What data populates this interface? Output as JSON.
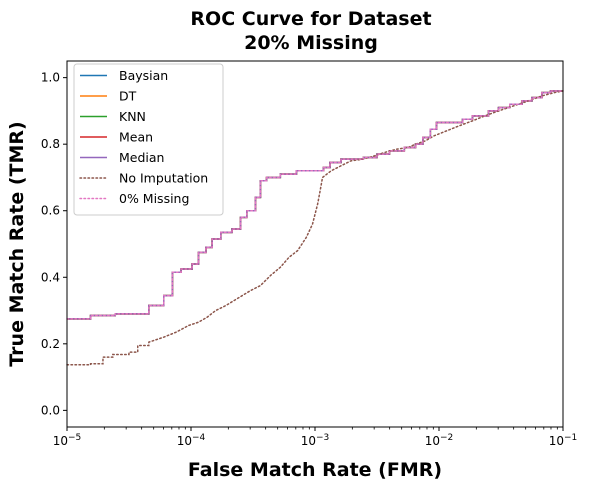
{
  "chart_data": {
    "type": "line",
    "title": [
      "ROC Curve for Dataset",
      "20% Missing"
    ],
    "xlabel": "False Match Rate (FMR)",
    "ylabel": "True Match Rate (TMR)",
    "x_scale": "log",
    "xlim": [
      1e-05,
      0.1
    ],
    "ylim": [
      -0.05,
      1.05
    ],
    "grid": false,
    "legend_position": "top-left",
    "x_ticks": [
      {
        "value": 1e-05,
        "base": "10",
        "exp": "−5"
      },
      {
        "value": 0.0001,
        "base": "10",
        "exp": "−4"
      },
      {
        "value": 0.001,
        "base": "10",
        "exp": "−3"
      },
      {
        "value": 0.01,
        "base": "10",
        "exp": "−2"
      },
      {
        "value": 0.1,
        "base": "10",
        "exp": "−1"
      }
    ],
    "y_ticks": [
      {
        "value": 0.0,
        "label": "0.0"
      },
      {
        "value": 0.2,
        "label": "0.2"
      },
      {
        "value": 0.4,
        "label": "0.4"
      },
      {
        "value": 0.6,
        "label": "0.6"
      },
      {
        "value": 0.8,
        "label": "0.8"
      },
      {
        "value": 1.0,
        "label": "1.0"
      }
    ],
    "imputed_curve": [
      [
        1e-05,
        0.275
      ],
      [
        1.55e-05,
        0.275
      ],
      [
        1.55e-05,
        0.285
      ],
      [
        2.45e-05,
        0.285
      ],
      [
        2.45e-05,
        0.29
      ],
      [
        3.47e-05,
        0.29
      ],
      [
        3.47e-05,
        0.29
      ],
      [
        4.57e-05,
        0.29
      ],
      [
        4.57e-05,
        0.315
      ],
      [
        6.03e-05,
        0.315
      ],
      [
        6.03e-05,
        0.345
      ],
      [
        7.08e-05,
        0.345
      ],
      [
        7.08e-05,
        0.415
      ],
      [
        8.32e-05,
        0.415
      ],
      [
        8.32e-05,
        0.425
      ],
      [
        0.000102,
        0.425
      ],
      [
        0.000102,
        0.44
      ],
      [
        0.000115,
        0.44
      ],
      [
        0.000115,
        0.475
      ],
      [
        0.000132,
        0.475
      ],
      [
        0.000132,
        0.49
      ],
      [
        0.000148,
        0.49
      ],
      [
        0.000148,
        0.515
      ],
      [
        0.000174,
        0.515
      ],
      [
        0.000174,
        0.535
      ],
      [
        0.000214,
        0.535
      ],
      [
        0.000214,
        0.545
      ],
      [
        0.000251,
        0.545
      ],
      [
        0.000251,
        0.58
      ],
      [
        0.000282,
        0.58
      ],
      [
        0.000282,
        0.6
      ],
      [
        0.000331,
        0.6
      ],
      [
        0.000331,
        0.64
      ],
      [
        0.000363,
        0.64
      ],
      [
        0.000363,
        0.69
      ],
      [
        0.000407,
        0.69
      ],
      [
        0.000407,
        0.7
      ],
      [
        0.000525,
        0.7
      ],
      [
        0.000525,
        0.71
      ],
      [
        0.000708,
        0.71
      ],
      [
        0.000708,
        0.72
      ],
      [
        0.00117,
        0.72
      ],
      [
        0.00117,
        0.73
      ],
      [
        0.00132,
        0.73
      ],
      [
        0.00132,
        0.745
      ],
      [
        0.00162,
        0.745
      ],
      [
        0.00162,
        0.755
      ],
      [
        0.00245,
        0.755
      ],
      [
        0.00245,
        0.76
      ],
      [
        0.00316,
        0.76
      ],
      [
        0.00316,
        0.77
      ],
      [
        0.00398,
        0.77
      ],
      [
        0.00398,
        0.78
      ],
      [
        0.00525,
        0.78
      ],
      [
        0.00525,
        0.79
      ],
      [
        0.00646,
        0.79
      ],
      [
        0.00646,
        0.8
      ],
      [
        0.00741,
        0.8
      ],
      [
        0.00741,
        0.82
      ],
      [
        0.00851,
        0.82
      ],
      [
        0.00851,
        0.845
      ],
      [
        0.00955,
        0.845
      ],
      [
        0.00955,
        0.865
      ],
      [
        0.0155,
        0.865
      ],
      [
        0.0155,
        0.875
      ],
      [
        0.0186,
        0.875
      ],
      [
        0.0186,
        0.885
      ],
      [
        0.0251,
        0.885
      ],
      [
        0.0251,
        0.9
      ],
      [
        0.0302,
        0.9
      ],
      [
        0.0302,
        0.91
      ],
      [
        0.0372,
        0.91
      ],
      [
        0.0372,
        0.92
      ],
      [
        0.0468,
        0.92
      ],
      [
        0.0468,
        0.93
      ],
      [
        0.0562,
        0.93
      ],
      [
        0.0562,
        0.94
      ],
      [
        0.0676,
        0.94
      ],
      [
        0.0676,
        0.955
      ],
      [
        0.0794,
        0.955
      ],
      [
        0.0794,
        0.96
      ],
      [
        0.1,
        0.96
      ]
    ],
    "no_imputation_curve": [
      [
        1e-05,
        0.137
      ],
      [
        1.55e-05,
        0.137
      ],
      [
        1.55e-05,
        0.14
      ],
      [
        1.95e-05,
        0.14
      ],
      [
        1.95e-05,
        0.16
      ],
      [
        2.34e-05,
        0.16
      ],
      [
        2.34e-05,
        0.168
      ],
      [
        3.16e-05,
        0.168
      ],
      [
        3.16e-05,
        0.175
      ],
      [
        3.72e-05,
        0.175
      ],
      [
        3.72e-05,
        0.195
      ],
      [
        4.57e-05,
        0.195
      ],
      [
        4.57e-05,
        0.205
      ],
      [
        6.03e-05,
        0.22
      ],
      [
        7.59e-05,
        0.235
      ],
      [
        9.55e-05,
        0.255
      ],
      [
        0.000115,
        0.265
      ],
      [
        0.000135,
        0.28
      ],
      [
        0.000158,
        0.3
      ],
      [
        0.000191,
        0.315
      ],
      [
        0.000234,
        0.335
      ],
      [
        0.000302,
        0.36
      ],
      [
        0.000363,
        0.375
      ],
      [
        0.000437,
        0.405
      ],
      [
        0.000525,
        0.43
      ],
      [
        0.000617,
        0.46
      ],
      [
        0.000724,
        0.48
      ],
      [
        0.000851,
        0.52
      ],
      [
        0.000955,
        0.56
      ],
      [
        0.00105,
        0.62
      ],
      [
        0.0011,
        0.66
      ],
      [
        0.00115,
        0.7
      ],
      [
        0.00135,
        0.72
      ],
      [
        0.00162,
        0.735
      ],
      [
        0.00195,
        0.75
      ],
      [
        0.00245,
        0.755
      ],
      [
        0.00302,
        0.765
      ],
      [
        0.00363,
        0.775
      ],
      [
        0.00457,
        0.785
      ],
      [
        0.00562,
        0.79
      ],
      [
        0.00646,
        0.8
      ],
      [
        0.00776,
        0.81
      ],
      [
        0.00912,
        0.825
      ],
      [
        0.0115,
        0.84
      ],
      [
        0.0145,
        0.855
      ],
      [
        0.0186,
        0.87
      ],
      [
        0.0234,
        0.885
      ],
      [
        0.0302,
        0.9
      ],
      [
        0.0398,
        0.915
      ],
      [
        0.0525,
        0.93
      ],
      [
        0.0676,
        0.945
      ],
      [
        0.0851,
        0.955
      ],
      [
        0.1,
        0.96
      ]
    ],
    "series": [
      {
        "name": "Baysian",
        "color": "#1f77b4",
        "style": "solid",
        "curve": "imputed_curve"
      },
      {
        "name": "DT",
        "color": "#ff7f0e",
        "style": "solid",
        "curve": "imputed_curve"
      },
      {
        "name": "KNN",
        "color": "#2ca02c",
        "style": "solid",
        "curve": "imputed_curve"
      },
      {
        "name": "Mean",
        "color": "#d62728",
        "style": "solid",
        "curve": "imputed_curve"
      },
      {
        "name": "Median",
        "color": "#9467bd",
        "style": "solid",
        "curve": "imputed_curve"
      },
      {
        "name": "No Imputation",
        "color": "#8c564b",
        "style": "dotted",
        "curve": "no_imputation_curve"
      },
      {
        "name": "0% Missing",
        "color": "#e377c2",
        "style": "dotted",
        "curve": "imputed_curve"
      }
    ]
  }
}
